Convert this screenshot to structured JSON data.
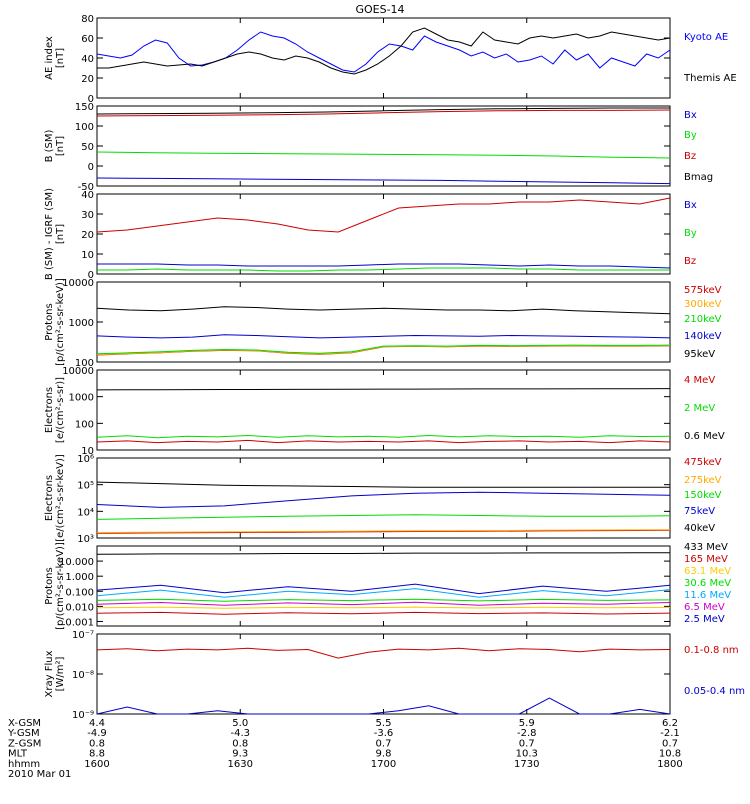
{
  "title": "GOES-14",
  "chart_data": [
    {
      "type": "line",
      "id": "ae",
      "ylabel": [
        "AE index",
        "[nT]"
      ],
      "scale": "linear",
      "ylim": [
        0,
        80
      ],
      "ticks": [
        "0",
        "20",
        "40",
        "60",
        "80"
      ],
      "tick_values": [
        0,
        20,
        40,
        60,
        80
      ],
      "series": [
        {
          "name": "Kyoto AE",
          "color": "#0000ff",
          "values": [
            44,
            42,
            40,
            43,
            52,
            58,
            55,
            40,
            32,
            33,
            36,
            40,
            48,
            58,
            66,
            62,
            60,
            54,
            46,
            40,
            34,
            28,
            26,
            34,
            46,
            54,
            52,
            48,
            62,
            56,
            52,
            48,
            42,
            46,
            40,
            44,
            36,
            38,
            42,
            34,
            48,
            38,
            44,
            30,
            40,
            36,
            32,
            44,
            40,
            48
          ]
        },
        {
          "name": "Themis AE",
          "color": "#000000",
          "values": [
            30,
            30,
            32,
            34,
            36,
            34,
            32,
            33,
            34,
            32,
            36,
            40,
            44,
            46,
            44,
            40,
            38,
            42,
            40,
            36,
            30,
            26,
            24,
            28,
            34,
            42,
            52,
            66,
            70,
            64,
            58,
            56,
            52,
            66,
            58,
            56,
            54,
            60,
            62,
            60,
            62,
            64,
            60,
            62,
            66,
            64,
            62,
            60,
            58,
            60
          ]
        }
      ]
    },
    {
      "type": "line",
      "id": "bsm",
      "ylabel": [
        "B (SM)",
        "[nT]"
      ],
      "scale": "linear",
      "ylim": [
        -50,
        150
      ],
      "ticks": [
        "-50",
        "0",
        "50",
        "100",
        "150"
      ],
      "tick_values": [
        -50,
        0,
        50,
        100,
        150
      ],
      "series": [
        {
          "name": "Bx",
          "color": "#0000cc",
          "values": [
            -30,
            -31,
            -32,
            -33,
            -34,
            -35,
            -36,
            -38,
            -40,
            -42,
            -44
          ]
        },
        {
          "name": "By",
          "color": "#00dd00",
          "values": [
            35,
            33,
            32,
            31,
            30,
            29,
            28,
            27,
            25,
            22,
            20
          ]
        },
        {
          "name": "Bz",
          "color": "#cc0000",
          "values": [
            125,
            126,
            127,
            128,
            130,
            133,
            136,
            138,
            139,
            139,
            140
          ]
        },
        {
          "name": "Bmag",
          "color": "#000000",
          "values": [
            130,
            131,
            132,
            133,
            135,
            138,
            141,
            143,
            144,
            145,
            145
          ]
        }
      ]
    },
    {
      "type": "line",
      "id": "bigrf",
      "ylabel": [
        "B (SM) - IGRF (SM)",
        "[nT]"
      ],
      "scale": "linear",
      "ylim": [
        0,
        40
      ],
      "ticks": [
        "0",
        "10",
        "20",
        "30",
        "40"
      ],
      "tick_values": [
        0,
        10,
        20,
        30,
        40
      ],
      "series": [
        {
          "name": "Bx",
          "color": "#0000cc",
          "values": [
            5,
            5,
            5,
            4.5,
            4.5,
            4,
            4,
            4,
            4,
            4.5,
            5,
            5,
            5,
            4.5,
            4,
            4.5,
            4,
            4,
            3.5,
            3
          ]
        },
        {
          "name": "By",
          "color": "#00dd00",
          "values": [
            2,
            2,
            2.5,
            2,
            2,
            2,
            1.5,
            1.5,
            2,
            2,
            2.5,
            3,
            3,
            3,
            2.5,
            2.5,
            2,
            2,
            2,
            2
          ]
        },
        {
          "name": "Bz",
          "color": "#cc0000",
          "values": [
            21,
            22,
            24,
            26,
            28,
            27,
            25,
            22,
            21,
            27,
            33,
            34,
            35,
            35,
            36,
            36,
            37,
            36,
            35,
            38
          ]
        }
      ]
    },
    {
      "type": "line",
      "id": "protons-low",
      "ylabel": [
        "Protons",
        "[p/(cm²-s-sr-keV)]"
      ],
      "scale": "log",
      "ylim": [
        100,
        10000
      ],
      "ticks": [
        "100",
        "1000",
        "10000"
      ],
      "tick_values": [
        100,
        1000,
        10000
      ],
      "series": [
        {
          "name": "575keV",
          "color": "#cc0000",
          "values": [
            150,
            160,
            170,
            185,
            195,
            190,
            165,
            155,
            170,
            240,
            245,
            240,
            250,
            245,
            250,
            255,
            250,
            250,
            255
          ]
        },
        {
          "name": "300keV",
          "color": "#ffaa00",
          "values": [
            152,
            162,
            172,
            188,
            198,
            193,
            168,
            158,
            173,
            243,
            248,
            243,
            253,
            248,
            253,
            258,
            253,
            253,
            258
          ]
        },
        {
          "name": "210keV",
          "color": "#00dd00",
          "values": [
            160,
            170,
            180,
            195,
            205,
            200,
            175,
            165,
            180,
            250,
            255,
            250,
            260,
            255,
            260,
            265,
            260,
            260,
            265
          ]
        },
        {
          "name": "140keV",
          "color": "#0000cc",
          "values": [
            450,
            420,
            400,
            420,
            480,
            460,
            430,
            400,
            420,
            440,
            460,
            450,
            440,
            460,
            450,
            440,
            430,
            420,
            400
          ]
        },
        {
          "name": "95keV",
          "color": "#000000",
          "values": [
            2200,
            2000,
            1900,
            2100,
            2400,
            2300,
            2100,
            2000,
            2100,
            2200,
            2100,
            2000,
            2000,
            1900,
            2100,
            1900,
            1800,
            1700,
            1600
          ]
        }
      ]
    },
    {
      "type": "line",
      "id": "electrons-high",
      "ylabel": [
        "Electrons",
        "[e/(cm²-s-sr)]"
      ],
      "scale": "log",
      "ylim": [
        10,
        10000
      ],
      "ticks": [
        "10",
        "100",
        "1000",
        "10000"
      ],
      "tick_values": [
        10,
        100,
        1000,
        10000
      ],
      "series": [
        {
          "name": "4 MeV",
          "color": "#cc0000",
          "values": [
            20,
            22,
            19,
            21,
            20,
            23,
            19,
            22,
            20,
            21,
            20,
            22,
            19,
            21,
            22,
            20,
            21,
            19,
            22,
            20
          ]
        },
        {
          "name": "2 MeV",
          "color": "#00dd00",
          "values": [
            30,
            34,
            29,
            33,
            31,
            35,
            30,
            34,
            31,
            33,
            30,
            35,
            31,
            34,
            32,
            33,
            30,
            34,
            32,
            33
          ]
        },
        {
          "name": "0.6 MeV",
          "color": "#000000",
          "values": [
            1800,
            1820,
            1850,
            1880,
            1900,
            1920,
            1950,
            1950,
            1970,
            2000
          ]
        }
      ]
    },
    {
      "type": "line",
      "id": "electrons-low",
      "ylabel": [
        "Electrons",
        "[e/(cm²-s-sr-keV)]"
      ],
      "scale": "log",
      "ylim": [
        1000,
        1000000
      ],
      "ticks": [
        "10³",
        "10⁴",
        "10⁵",
        "10⁶"
      ],
      "tick_values": [
        1000,
        10000,
        100000,
        1000000
      ],
      "series": [
        {
          "name": "475keV",
          "color": "#cc0000",
          "values": [
            1500,
            1550,
            1600,
            1650,
            1700,
            1750,
            1800,
            1850,
            1900,
            1950
          ]
        },
        {
          "name": "275keV",
          "color": "#ffaa00",
          "values": [
            1600,
            1650,
            1700,
            1750,
            1800,
            1850,
            1900,
            1950,
            2000,
            2050
          ]
        },
        {
          "name": "150keV",
          "color": "#00dd00",
          "values": [
            5000,
            5500,
            6000,
            6500,
            7000,
            7500,
            7000,
            6500,
            6500,
            6800
          ]
        },
        {
          "name": "75keV",
          "color": "#0000cc",
          "values": [
            18000,
            14000,
            16000,
            25000,
            38000,
            48000,
            52000,
            48000,
            44000,
            40000
          ]
        },
        {
          "name": "40keV",
          "color": "#000000",
          "values": [
            125000,
            110000,
            95000,
            90000,
            85000,
            80000,
            80000,
            80000,
            80000,
            80000
          ]
        }
      ]
    },
    {
      "type": "line",
      "id": "protons-high",
      "ylabel": [
        "Protons",
        "[p/(cm²-s-sr-keV)]"
      ],
      "scale": "log",
      "ylim": [
        0.0005,
        100
      ],
      "ticks": [
        "0.001",
        "0.010",
        "0.100",
        "1.000",
        "10.000"
      ],
      "tick_values": [
        0.001,
        0.01,
        0.1,
        1,
        10
      ],
      "series": [
        {
          "name": "433 MeV",
          "color": "#000000",
          "values": [
            28,
            30,
            30,
            32,
            32,
            34,
            34,
            35,
            35,
            36
          ]
        },
        {
          "name": "165 MeV",
          "color": "#cc0000",
          "values": [
            0.0035,
            0.004,
            0.003,
            0.0038,
            0.0032,
            0.004,
            0.0033,
            0.0037,
            0.0031,
            0.0036
          ]
        },
        {
          "name": "63.1 MeV",
          "color": "#ffcc00",
          "values": [
            0.008,
            0.009,
            0.0075,
            0.0085,
            0.008,
            0.009,
            0.0078,
            0.0088,
            0.0082,
            0.0086
          ]
        },
        {
          "name": "30.6 MeV",
          "color": "#00dd00",
          "values": [
            0.025,
            0.03,
            0.022,
            0.028,
            0.024,
            0.03,
            0.023,
            0.029,
            0.025,
            0.027
          ]
        },
        {
          "name": "11.6 MeV",
          "color": "#00aaff",
          "values": [
            0.05,
            0.12,
            0.04,
            0.1,
            0.06,
            0.15,
            0.04,
            0.11,
            0.05,
            0.13
          ]
        },
        {
          "name": "6.5 MeV",
          "color": "#cc00cc",
          "values": [
            0.014,
            0.018,
            0.012,
            0.017,
            0.013,
            0.019,
            0.012,
            0.016,
            0.014,
            0.018
          ]
        },
        {
          "name": "2.5 MeV",
          "color": "#0000cc",
          "values": [
            0.12,
            0.25,
            0.08,
            0.2,
            0.1,
            0.3,
            0.07,
            0.22,
            0.1,
            0.25
          ]
        }
      ]
    },
    {
      "type": "line",
      "id": "xray",
      "ylabel": [
        "Xray Flux",
        "[W/m²]"
      ],
      "scale": "log",
      "ylim": [
        1e-09,
        1e-07
      ],
      "ticks": [
        "10⁻⁹",
        "10⁻⁸",
        "10⁻⁷"
      ],
      "tick_values": [
        1e-09,
        1e-08,
        1e-07
      ],
      "series": [
        {
          "name": "0.1-0.8 nm",
          "color": "#cc0000",
          "values": [
            4e-08,
            4.3e-08,
            3.8e-08,
            4.2e-08,
            4e-08,
            4.4e-08,
            3.9e-08,
            4.1e-08,
            2.5e-08,
            3.5e-08,
            4.2e-08,
            4e-08,
            4.4e-08,
            3.8e-08,
            4.3e-08,
            4.1e-08,
            3.6e-08,
            4.2e-08,
            4e-08,
            4.1e-08
          ]
        },
        {
          "name": "0.05-0.4 nm",
          "color": "#0000cc",
          "values": [
            1e-09,
            1.5e-09,
            1e-09,
            1e-09,
            1.2e-09,
            1e-09,
            1e-09,
            1e-09,
            1e-09,
            1e-09,
            1.2e-09,
            1.6e-09,
            1e-09,
            1e-09,
            1e-09,
            2.5e-09,
            1e-09,
            1e-09,
            1.3e-09,
            1e-09
          ]
        }
      ]
    }
  ],
  "ephemeris": {
    "x_ticks": [
      "1600",
      "1630",
      "1700",
      "1730",
      "1800"
    ],
    "rows": [
      {
        "label": "X-GSM",
        "values": [
          "4.4",
          "5.0",
          "5.5",
          "5.9",
          "6.2"
        ]
      },
      {
        "label": "Y-GSM",
        "values": [
          "-4.9",
          "-4.3",
          "-3.6",
          "-2.8",
          "-2.1"
        ]
      },
      {
        "label": "Z-GSM",
        "values": [
          "0.8",
          "0.8",
          "0.7",
          "0.7",
          "0.7"
        ]
      },
      {
        "label": "MLT",
        "values": [
          "8.8",
          "9.3",
          "9.8",
          "10.3",
          "10.8"
        ]
      },
      {
        "label": "hhmm",
        "values": [
          "1600",
          "1630",
          "1700",
          "1730",
          "1800"
        ]
      }
    ],
    "date": "2010 Mar 01"
  }
}
